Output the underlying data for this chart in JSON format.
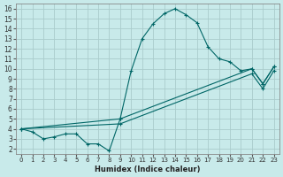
{
  "xlabel": "Humidex (Indice chaleur)",
  "background_color": "#c8eaea",
  "grid_color": "#aacccc",
  "line_color": "#006666",
  "xlim": [
    -0.5,
    23.5
  ],
  "ylim": [
    1.5,
    16.5
  ],
  "xticks": [
    0,
    1,
    2,
    3,
    4,
    5,
    6,
    7,
    8,
    9,
    10,
    11,
    12,
    13,
    14,
    15,
    16,
    17,
    18,
    19,
    20,
    21,
    22,
    23
  ],
  "yticks": [
    2,
    3,
    4,
    5,
    6,
    7,
    8,
    9,
    10,
    11,
    12,
    13,
    14,
    15,
    16
  ],
  "curve_main_x": [
    0,
    1,
    2,
    3,
    4,
    5,
    6,
    7,
    8,
    9,
    10,
    11,
    12,
    13,
    14,
    15,
    16,
    17,
    18,
    19,
    20,
    21,
    22,
    23
  ],
  "curve_main_y": [
    4.0,
    3.7,
    3.0,
    3.2,
    3.5,
    3.5,
    2.5,
    2.5,
    1.8,
    5.0,
    9.8,
    13.0,
    14.5,
    15.5,
    16.0,
    15.4,
    14.6,
    12.2,
    11.0,
    10.7,
    9.8,
    10.0,
    8.5,
    10.2
  ],
  "curve_upper_x": [
    0,
    9,
    21,
    22,
    23
  ],
  "curve_upper_y": [
    4.0,
    5.0,
    10.0,
    8.5,
    10.2
  ],
  "curve_lower_x": [
    0,
    9,
    21,
    22,
    23
  ],
  "curve_lower_y": [
    4.0,
    4.5,
    9.5,
    8.0,
    9.8
  ]
}
